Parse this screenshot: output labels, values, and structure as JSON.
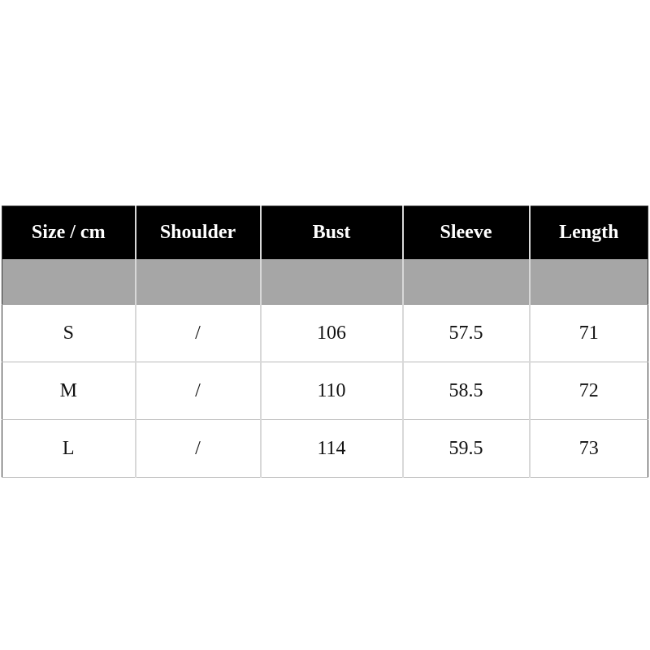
{
  "table": {
    "headers": [
      "Size / cm",
      "Shoulder",
      "Bust",
      "Sleeve",
      "Length"
    ],
    "rows": [
      [
        "S",
        "/",
        "106",
        "57.5",
        "71"
      ],
      [
        "M",
        "/",
        "110",
        "58.5",
        "72"
      ],
      [
        "L",
        "/",
        "114",
        "59.5",
        "73"
      ]
    ]
  },
  "colors": {
    "header_bg": "#000000",
    "header_text": "#ffffff",
    "spacer_row": "#a6a6a6"
  }
}
